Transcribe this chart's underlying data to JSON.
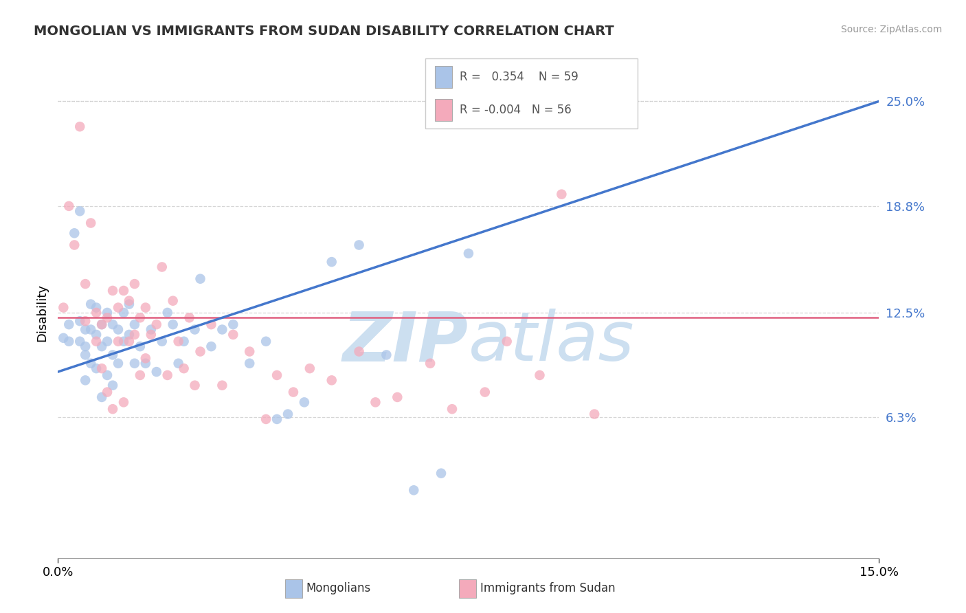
{
  "title": "MONGOLIAN VS IMMIGRANTS FROM SUDAN DISABILITY CORRELATION CHART",
  "source": "Source: ZipAtlas.com",
  "ylabel": "Disability",
  "ytick_labels": [
    "6.3%",
    "12.5%",
    "18.8%",
    "25.0%"
  ],
  "ytick_values": [
    0.063,
    0.125,
    0.188,
    0.25
  ],
  "xlim": [
    0.0,
    0.15
  ],
  "ylim": [
    -0.02,
    0.27
  ],
  "blue_color": "#aac4e8",
  "pink_color": "#f4aabb",
  "trend_blue": "#4477cc",
  "trend_pink": "#e06080",
  "trend_gray": "#b8c4d4",
  "watermark_text": "ZIPatlas",
  "watermark_color": "#ccdff0",
  "legend_label1": "R =  0.354   N = 59",
  "legend_label2": "R = -0.004   N = 56",
  "bottom_label1": "Mongolians",
  "bottom_label2": "Immigrants from Sudan",
  "mongolians_x": [
    0.001,
    0.002,
    0.002,
    0.003,
    0.004,
    0.004,
    0.004,
    0.005,
    0.005,
    0.005,
    0.005,
    0.006,
    0.006,
    0.006,
    0.007,
    0.007,
    0.007,
    0.008,
    0.008,
    0.008,
    0.009,
    0.009,
    0.009,
    0.01,
    0.01,
    0.01,
    0.011,
    0.011,
    0.012,
    0.012,
    0.013,
    0.013,
    0.014,
    0.014,
    0.015,
    0.016,
    0.017,
    0.018,
    0.019,
    0.02,
    0.021,
    0.022,
    0.023,
    0.025,
    0.026,
    0.028,
    0.03,
    0.032,
    0.035,
    0.038,
    0.04,
    0.042,
    0.045,
    0.05,
    0.055,
    0.06,
    0.065,
    0.07,
    0.075
  ],
  "mongolians_y": [
    0.11,
    0.118,
    0.108,
    0.172,
    0.185,
    0.108,
    0.12,
    0.1,
    0.115,
    0.105,
    0.085,
    0.095,
    0.13,
    0.115,
    0.092,
    0.112,
    0.128,
    0.075,
    0.118,
    0.105,
    0.088,
    0.108,
    0.125,
    0.082,
    0.1,
    0.118,
    0.095,
    0.115,
    0.108,
    0.125,
    0.112,
    0.13,
    0.095,
    0.118,
    0.105,
    0.095,
    0.115,
    0.09,
    0.108,
    0.125,
    0.118,
    0.095,
    0.108,
    0.115,
    0.145,
    0.105,
    0.115,
    0.118,
    0.095,
    0.108,
    0.062,
    0.065,
    0.072,
    0.155,
    0.165,
    0.1,
    0.02,
    0.03,
    0.16
  ],
  "sudan_x": [
    0.001,
    0.002,
    0.003,
    0.004,
    0.005,
    0.005,
    0.006,
    0.007,
    0.007,
    0.008,
    0.008,
    0.009,
    0.009,
    0.01,
    0.01,
    0.011,
    0.011,
    0.012,
    0.012,
    0.013,
    0.013,
    0.014,
    0.014,
    0.015,
    0.015,
    0.016,
    0.016,
    0.017,
    0.018,
    0.019,
    0.02,
    0.021,
    0.022,
    0.023,
    0.024,
    0.025,
    0.026,
    0.028,
    0.03,
    0.032,
    0.035,
    0.038,
    0.04,
    0.043,
    0.046,
    0.05,
    0.055,
    0.058,
    0.062,
    0.068,
    0.072,
    0.078,
    0.082,
    0.088,
    0.092,
    0.098
  ],
  "sudan_y": [
    0.128,
    0.188,
    0.165,
    0.235,
    0.12,
    0.142,
    0.178,
    0.125,
    0.108,
    0.092,
    0.118,
    0.078,
    0.122,
    0.068,
    0.138,
    0.108,
    0.128,
    0.072,
    0.138,
    0.108,
    0.132,
    0.112,
    0.142,
    0.088,
    0.122,
    0.098,
    0.128,
    0.112,
    0.118,
    0.152,
    0.088,
    0.132,
    0.108,
    0.092,
    0.122,
    0.082,
    0.102,
    0.118,
    0.082,
    0.112,
    0.102,
    0.062,
    0.088,
    0.078,
    0.092,
    0.085,
    0.102,
    0.072,
    0.075,
    0.095,
    0.068,
    0.078,
    0.108,
    0.088,
    0.195,
    0.065
  ]
}
